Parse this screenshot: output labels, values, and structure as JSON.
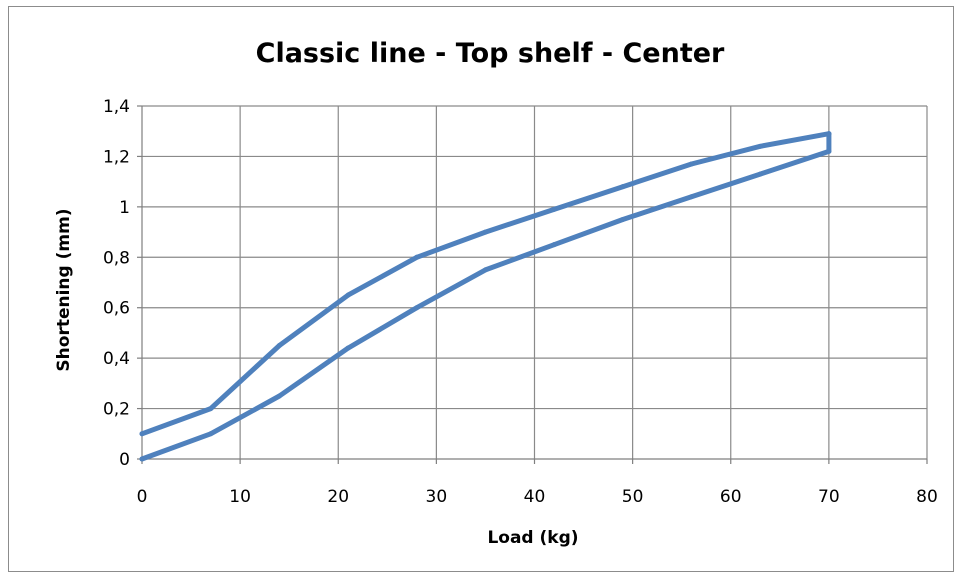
{
  "chart_data": {
    "type": "line",
    "title": "Classic line - Top shelf - Center",
    "xlabel": "Load (kg)",
    "ylabel": "Shortening (mm)",
    "xlim": [
      0,
      80
    ],
    "ylim": [
      0,
      1.4
    ],
    "x_ticks": [
      "0",
      "10",
      "20",
      "30",
      "40",
      "50",
      "60",
      "70",
      "80"
    ],
    "y_ticks": [
      "0",
      "0,2",
      "0,4",
      "0,6",
      "0,8",
      "1",
      "1,2",
      "1,4"
    ],
    "grid": true,
    "legend": "none",
    "series": [
      {
        "color": "#4f81bd",
        "x": [
          0,
          7,
          14,
          21,
          28,
          35,
          42,
          49,
          56,
          63,
          70,
          70
        ],
        "y": [
          0,
          0.1,
          0.25,
          0.44,
          0.6,
          0.75,
          0.85,
          0.95,
          1.04,
          1.13,
          1.22,
          1.29
        ]
      },
      {
        "color": "#4f81bd",
        "x": [
          70,
          63,
          56,
          49,
          42,
          35,
          28,
          21,
          14,
          7,
          0
        ],
        "y": [
          1.29,
          1.24,
          1.17,
          1.08,
          0.99,
          0.9,
          0.8,
          0.65,
          0.45,
          0.2,
          0.1
        ]
      }
    ]
  }
}
